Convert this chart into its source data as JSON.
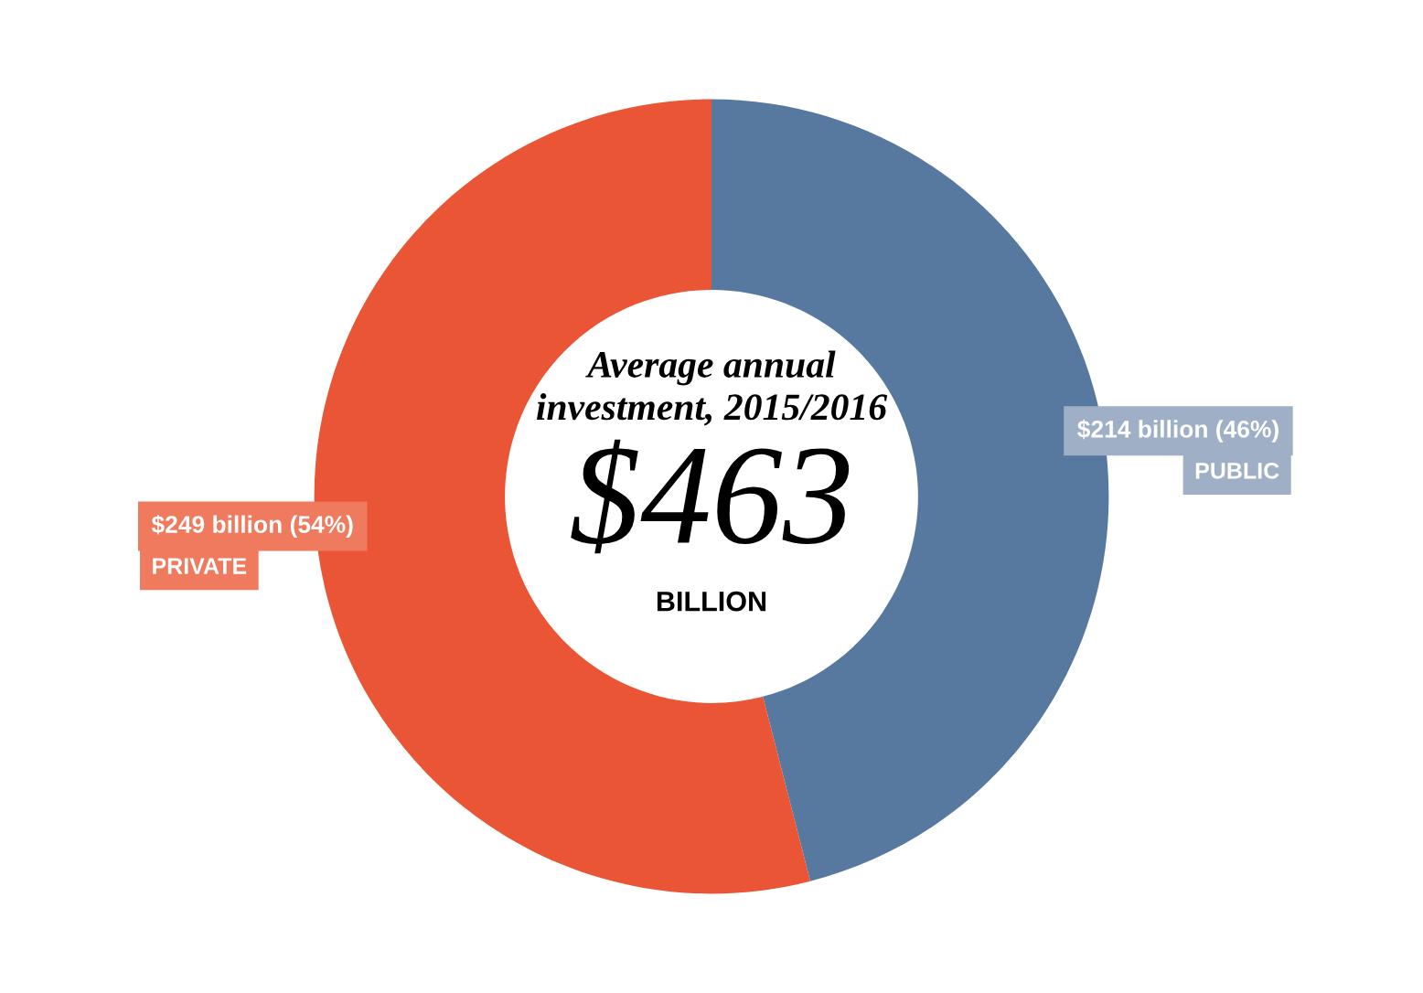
{
  "chart_data": {
    "type": "donut",
    "title": "Average annual\ninvestment, 2015/2016",
    "categories": [
      "PUBLIC",
      "PRIVATE"
    ],
    "values": [
      46,
      54
    ],
    "colors": [
      "#57799f",
      "#e95535"
    ],
    "value_labels": [
      "$214 billion (46%)",
      "$249 billion (54%)"
    ],
    "annotations": [
      "$463",
      "BILLION"
    ]
  }
}
